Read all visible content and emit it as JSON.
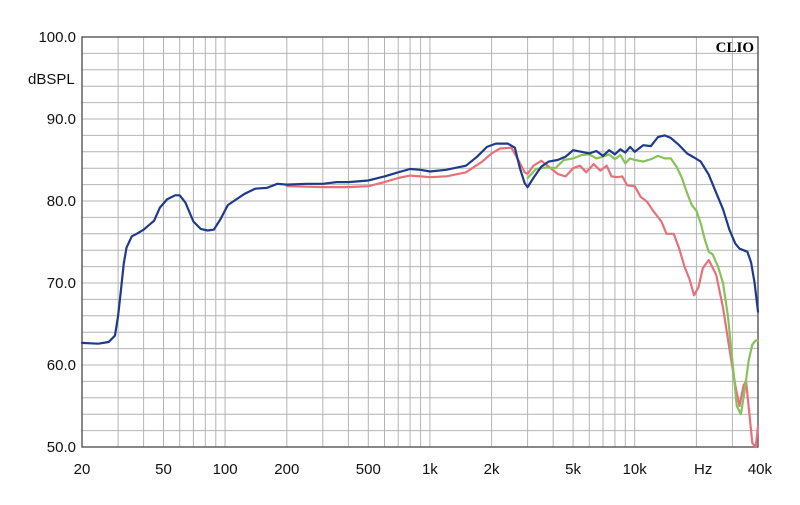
{
  "chart_data": {
    "type": "line",
    "brand": "CLIO",
    "ylabel": "dBSPL",
    "xlabel": "Hz",
    "x_scale": "log",
    "xlim": [
      20,
      40000
    ],
    "ylim": [
      50,
      100
    ],
    "grid": true,
    "x_tick_labels": [
      {
        "value": 20,
        "label": "20"
      },
      {
        "value": 50,
        "label": "50"
      },
      {
        "value": 100,
        "label": "100"
      },
      {
        "value": 200,
        "label": "200"
      },
      {
        "value": 500,
        "label": "500"
      },
      {
        "value": 1000,
        "label": "1k"
      },
      {
        "value": 2000,
        "label": "2k"
      },
      {
        "value": 5000,
        "label": "5k"
      },
      {
        "value": 10000,
        "label": "10k"
      },
      {
        "value": 40000,
        "label": "40k"
      }
    ],
    "y_tick_labels": [
      {
        "value": 100,
        "label": "100.0"
      },
      {
        "value": 90,
        "label": "90.0"
      },
      {
        "value": 80,
        "label": "80.0"
      },
      {
        "value": 70,
        "label": "70.0"
      },
      {
        "value": 60,
        "label": "60.0"
      },
      {
        "value": 50,
        "label": "50.0"
      }
    ],
    "series": [
      {
        "color": "#e8707a",
        "points": [
          [
            200,
            81.8
          ],
          [
            300,
            81.7
          ],
          [
            400,
            81.7
          ],
          [
            500,
            81.8
          ],
          [
            600,
            82.3
          ],
          [
            700,
            82.8
          ],
          [
            800,
            83.1
          ],
          [
            900,
            83.0
          ],
          [
            1000,
            82.9
          ],
          [
            1200,
            83.0
          ],
          [
            1500,
            83.5
          ],
          [
            1800,
            84.8
          ],
          [
            2000,
            85.8
          ],
          [
            2200,
            86.4
          ],
          [
            2500,
            86.5
          ],
          [
            2700,
            85.0
          ],
          [
            2900,
            83.5
          ],
          [
            3000,
            83.3
          ],
          [
            3200,
            84.3
          ],
          [
            3500,
            84.9
          ],
          [
            3800,
            84.2
          ],
          [
            4200,
            83.3
          ],
          [
            4600,
            83.0
          ],
          [
            5000,
            84.0
          ],
          [
            5400,
            84.3
          ],
          [
            5800,
            83.5
          ],
          [
            6300,
            84.5
          ],
          [
            6800,
            83.7
          ],
          [
            7300,
            84.3
          ],
          [
            7700,
            83.0
          ],
          [
            8200,
            82.9
          ],
          [
            8700,
            83.0
          ],
          [
            9200,
            81.9
          ],
          [
            10000,
            81.8
          ],
          [
            10700,
            80.5
          ],
          [
            11500,
            79.9
          ],
          [
            12300,
            78.8
          ],
          [
            13500,
            77.5
          ],
          [
            14300,
            76.0
          ],
          [
            15500,
            76.0
          ],
          [
            16500,
            74.2
          ],
          [
            17500,
            72.0
          ],
          [
            18500,
            70.5
          ],
          [
            19500,
            68.5
          ],
          [
            20500,
            69.5
          ],
          [
            21500,
            71.8
          ],
          [
            23000,
            72.8
          ],
          [
            25000,
            71.0
          ],
          [
            27000,
            67.0
          ],
          [
            29000,
            62.0
          ],
          [
            31000,
            57.5
          ],
          [
            32500,
            55.0
          ],
          [
            34000,
            57.5
          ],
          [
            35000,
            58.0
          ],
          [
            36000,
            55.0
          ],
          [
            37500,
            50.5
          ],
          [
            39000,
            50.0
          ],
          [
            40000,
            52.5
          ]
        ]
      },
      {
        "color": "#86c25a",
        "points": [
          [
            3000,
            82.8
          ],
          [
            3300,
            83.9
          ],
          [
            3700,
            84.1
          ],
          [
            4100,
            84.0
          ],
          [
            4500,
            85.0
          ],
          [
            5000,
            85.2
          ],
          [
            5500,
            85.6
          ],
          [
            6000,
            85.7
          ],
          [
            6500,
            85.2
          ],
          [
            7000,
            85.4
          ],
          [
            7500,
            85.7
          ],
          [
            8000,
            85.1
          ],
          [
            8500,
            85.6
          ],
          [
            9000,
            84.6
          ],
          [
            9500,
            85.2
          ],
          [
            10000,
            85.0
          ],
          [
            11000,
            84.8
          ],
          [
            12000,
            85.1
          ],
          [
            13000,
            85.5
          ],
          [
            14000,
            85.2
          ],
          [
            15000,
            85.2
          ],
          [
            16000,
            84.2
          ],
          [
            17000,
            82.8
          ],
          [
            18000,
            81.0
          ],
          [
            19000,
            79.5
          ],
          [
            20000,
            78.8
          ],
          [
            21000,
            77.3
          ],
          [
            22000,
            75.3
          ],
          [
            23000,
            73.8
          ],
          [
            24000,
            73.5
          ],
          [
            25500,
            72.0
          ],
          [
            27000,
            70.0
          ],
          [
            28500,
            66.0
          ],
          [
            30000,
            60.5
          ],
          [
            31500,
            55.0
          ],
          [
            33000,
            54.0
          ],
          [
            34500,
            57.0
          ],
          [
            36000,
            60.5
          ],
          [
            37500,
            62.5
          ],
          [
            39000,
            63.0
          ],
          [
            40000,
            63.0
          ]
        ]
      },
      {
        "color": "#1f3a8a",
        "points": [
          [
            20,
            62.7
          ],
          [
            24,
            62.6
          ],
          [
            27,
            62.8
          ],
          [
            29,
            63.6
          ],
          [
            30,
            66.0
          ],
          [
            31,
            69.2
          ],
          [
            32,
            72.4
          ],
          [
            33,
            74.3
          ],
          [
            35,
            75.7
          ],
          [
            37,
            76.0
          ],
          [
            40,
            76.5
          ],
          [
            45,
            77.6
          ],
          [
            48,
            79.2
          ],
          [
            52,
            80.2
          ],
          [
            57,
            80.7
          ],
          [
            60,
            80.7
          ],
          [
            64,
            79.8
          ],
          [
            70,
            77.5
          ],
          [
            76,
            76.6
          ],
          [
            82,
            76.4
          ],
          [
            88,
            76.5
          ],
          [
            95,
            77.8
          ],
          [
            103,
            79.5
          ],
          [
            115,
            80.3
          ],
          [
            125,
            80.9
          ],
          [
            140,
            81.5
          ],
          [
            160,
            81.6
          ],
          [
            180,
            82.1
          ],
          [
            200,
            82.0
          ],
          [
            250,
            82.1
          ],
          [
            300,
            82.1
          ],
          [
            350,
            82.3
          ],
          [
            400,
            82.3
          ],
          [
            500,
            82.5
          ],
          [
            600,
            83.0
          ],
          [
            700,
            83.5
          ],
          [
            800,
            83.9
          ],
          [
            900,
            83.8
          ],
          [
            1000,
            83.6
          ],
          [
            1200,
            83.8
          ],
          [
            1500,
            84.3
          ],
          [
            1700,
            85.4
          ],
          [
            1900,
            86.6
          ],
          [
            2100,
            87.0
          ],
          [
            2400,
            87.0
          ],
          [
            2600,
            86.5
          ],
          [
            2750,
            84.0
          ],
          [
            2900,
            82.2
          ],
          [
            3000,
            81.7
          ],
          [
            3200,
            82.8
          ],
          [
            3500,
            84.2
          ],
          [
            3800,
            84.8
          ],
          [
            4200,
            85.0
          ],
          [
            4600,
            85.4
          ],
          [
            5000,
            86.2
          ],
          [
            5500,
            86.0
          ],
          [
            6000,
            85.8
          ],
          [
            6500,
            86.1
          ],
          [
            7000,
            85.5
          ],
          [
            7500,
            86.2
          ],
          [
            8000,
            85.7
          ],
          [
            8500,
            86.3
          ],
          [
            9000,
            85.9
          ],
          [
            9500,
            86.6
          ],
          [
            10000,
            86.0
          ],
          [
            11000,
            86.8
          ],
          [
            12000,
            86.7
          ],
          [
            13000,
            87.8
          ],
          [
            14000,
            88.0
          ],
          [
            15000,
            87.7
          ],
          [
            16500,
            86.8
          ],
          [
            18000,
            85.8
          ],
          [
            19500,
            85.3
          ],
          [
            21000,
            84.8
          ],
          [
            23000,
            83.2
          ],
          [
            25000,
            81.0
          ],
          [
            27000,
            79.0
          ],
          [
            29000,
            76.5
          ],
          [
            31000,
            74.8
          ],
          [
            32500,
            74.2
          ],
          [
            34000,
            74.0
          ],
          [
            35500,
            73.8
          ],
          [
            37000,
            72.5
          ],
          [
            38500,
            70.0
          ],
          [
            40000,
            66.5
          ]
        ]
      }
    ]
  }
}
